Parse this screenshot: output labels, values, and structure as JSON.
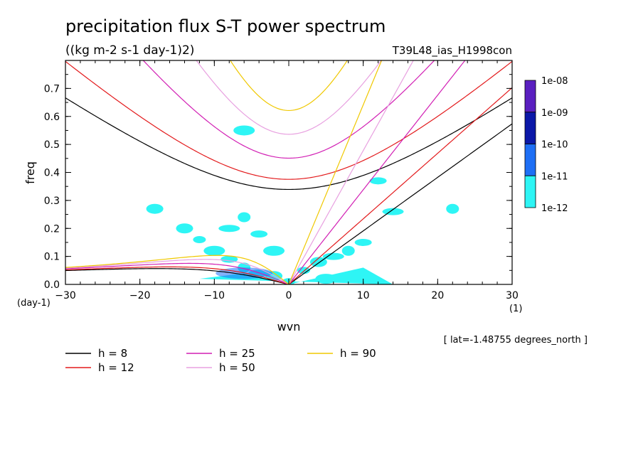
{
  "chart_data": {
    "type": "line",
    "title": "precipitation flux S-T power spectrum",
    "subtitle": "((kg m-2 s-1 day-1)2)",
    "run_label": "T39L48_ias_H1998con",
    "xlabel": "wvn",
    "ylabel": "freq",
    "x_unit": "(1)",
    "y_unit": "(day-1)",
    "xlim": [
      -30,
      30
    ],
    "ylim": [
      0,
      0.8
    ],
    "x_ticks": [
      -30,
      -20,
      -10,
      0,
      10,
      20,
      30
    ],
    "x_tick_labels": [
      "−30",
      "−20",
      "−10",
      "0",
      "10",
      "20",
      "30"
    ],
    "y_ticks": [
      0,
      0.1,
      0.2,
      0.3,
      0.4,
      0.5,
      0.6,
      0.7
    ],
    "y_tick_labels": [
      "0.0",
      "0.1",
      "0.2",
      "0.3",
      "0.4",
      "0.5",
      "0.6",
      "0.7"
    ],
    "footnote": "[ lat=-1.48755 degrees_north ]",
    "colorbar": {
      "labels": [
        "1e-08",
        "1e-09",
        "1e-10",
        "1e-11",
        "1e-12"
      ],
      "colors": [
        "#5a1fc0",
        "#0b18a8",
        "#1e6ff5",
        "#2ef5f5"
      ]
    },
    "series": [
      {
        "name": "h = 8",
        "color": "#000000",
        "h": 8
      },
      {
        "name": "h = 12",
        "color": "#e31a1c",
        "h": 12
      },
      {
        "name": "h = 25",
        "color": "#d21fb4",
        "h": 25
      },
      {
        "name": "h = 50",
        "color": "#e8a0e0",
        "h": 50
      },
      {
        "name": "h = 90",
        "color": "#f0c800",
        "h": 90
      }
    ],
    "shaded_regions": [
      {
        "wvn": 0,
        "freq": 0.01
      },
      {
        "wvn": -2,
        "freq": 0.03
      },
      {
        "wvn": -4,
        "freq": 0.04
      },
      {
        "wvn": -6,
        "freq": 0.06
      },
      {
        "wvn": -8,
        "freq": 0.09
      },
      {
        "wvn": -10,
        "freq": 0.12
      },
      {
        "wvn": -12,
        "freq": 0.16
      },
      {
        "wvn": -14,
        "freq": 0.2
      },
      {
        "wvn": -8,
        "freq": 0.2
      },
      {
        "wvn": -6,
        "freq": 0.24
      },
      {
        "wvn": -4,
        "freq": 0.18
      },
      {
        "wvn": -2,
        "freq": 0.12
      },
      {
        "wvn": 2,
        "freq": 0.05
      },
      {
        "wvn": 4,
        "freq": 0.08
      },
      {
        "wvn": 6,
        "freq": 0.1
      },
      {
        "wvn": 8,
        "freq": 0.12
      },
      {
        "wvn": 10,
        "freq": 0.15
      },
      {
        "wvn": 5,
        "freq": 0.02
      },
      {
        "wvn": 9,
        "freq": 0.04
      },
      {
        "wvn": -18,
        "freq": 0.27
      },
      {
        "wvn": 14,
        "freq": 0.26
      },
      {
        "wvn": 22,
        "freq": 0.27
      },
      {
        "wvn": 12,
        "freq": 0.37
      },
      {
        "wvn": -6,
        "freq": 0.55
      }
    ]
  }
}
